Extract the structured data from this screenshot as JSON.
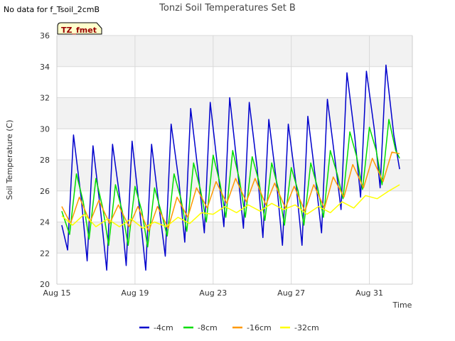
{
  "no_data_note": "No data for f_Tsoil_2cmB",
  "badge": "TZ_fmet",
  "chart_data": {
    "type": "line",
    "title": "Tonzi Soil Temperatures Set B",
    "xlabel": "Time",
    "ylabel": "Soil Temperature (C)",
    "ylim": [
      20,
      36
    ],
    "yticks": [
      20,
      22,
      24,
      26,
      28,
      30,
      32,
      34,
      36
    ],
    "xlim": [
      0,
      18.2
    ],
    "xticks": [
      {
        "pos": 0,
        "label": "Aug 15"
      },
      {
        "pos": 4,
        "label": "Aug 19"
      },
      {
        "pos": 8,
        "label": "Aug 23"
      },
      {
        "pos": 12,
        "label": "Aug 27"
      },
      {
        "pos": 16,
        "label": "Aug 31"
      }
    ],
    "grid": true,
    "legend_position": "bottom",
    "series": [
      {
        "name": "-4cm",
        "color": "#0000cc",
        "x": [
          0.25,
          0.55,
          0.85,
          1.25,
          1.55,
          1.85,
          2.25,
          2.55,
          2.85,
          3.25,
          3.55,
          3.85,
          4.25,
          4.55,
          4.85,
          5.25,
          5.55,
          5.85,
          6.25,
          6.55,
          6.85,
          7.25,
          7.55,
          7.85,
          8.25,
          8.55,
          8.85,
          9.25,
          9.55,
          9.85,
          10.25,
          10.55,
          10.85,
          11.25,
          11.55,
          11.85,
          12.25,
          12.55,
          12.85,
          13.25,
          13.55,
          13.85,
          14.25,
          14.55,
          14.85,
          15.25,
          15.55,
          15.85,
          16.25,
          16.55,
          16.85,
          17.25,
          17.55
        ],
        "y": [
          23.8,
          22.2,
          29.6,
          25.5,
          21.5,
          28.9,
          24.6,
          20.9,
          29.0,
          25.3,
          21.2,
          29.2,
          24.6,
          20.9,
          29.0,
          24.8,
          21.8,
          30.3,
          26.6,
          22.7,
          31.3,
          27.0,
          23.3,
          31.7,
          27.3,
          23.7,
          32.0,
          27.4,
          23.6,
          31.7,
          27.5,
          23.0,
          30.6,
          26.5,
          22.5,
          30.3,
          26.4,
          22.5,
          30.8,
          26.7,
          23.3,
          31.9,
          27.9,
          24.8,
          33.6,
          29.5,
          25.6,
          33.7,
          30.0,
          26.2,
          34.1,
          29.6,
          27.4
        ]
      },
      {
        "name": "-8cm",
        "color": "#00dd00",
        "x": [
          0.25,
          0.65,
          1.0,
          1.35,
          1.65,
          2.0,
          2.35,
          2.65,
          3.0,
          3.35,
          3.65,
          4.0,
          4.35,
          4.65,
          5.0,
          5.35,
          5.65,
          6.0,
          6.35,
          6.65,
          7.0,
          7.35,
          7.65,
          8.0,
          8.35,
          8.65,
          9.0,
          9.35,
          9.65,
          10.0,
          10.35,
          10.65,
          11.0,
          11.35,
          11.65,
          12.0,
          12.35,
          12.65,
          13.0,
          13.35,
          13.65,
          14.0,
          14.35,
          14.65,
          15.0,
          15.35,
          15.65,
          16.0,
          16.35,
          16.65,
          17.0,
          17.35,
          17.55
        ],
        "y": [
          24.7,
          23.2,
          27.1,
          25.3,
          22.9,
          26.8,
          24.9,
          22.5,
          26.4,
          24.7,
          22.5,
          26.3,
          24.7,
          22.4,
          26.2,
          24.6,
          23.1,
          27.1,
          25.5,
          23.4,
          27.8,
          26.1,
          24.0,
          28.3,
          26.5,
          24.3,
          28.6,
          26.7,
          24.3,
          28.2,
          26.6,
          24.1,
          27.8,
          26.1,
          23.8,
          27.5,
          26.0,
          23.8,
          27.8,
          26.2,
          24.3,
          28.6,
          27.1,
          25.5,
          29.8,
          28.2,
          26.1,
          30.1,
          28.6,
          26.4,
          30.6,
          28.6,
          28.1
        ]
      },
      {
        "name": "-16cm",
        "color": "#ff9900",
        "x": [
          0.25,
          0.7,
          1.15,
          1.7,
          2.15,
          2.7,
          3.15,
          3.7,
          4.15,
          4.7,
          5.15,
          5.7,
          6.15,
          6.7,
          7.15,
          7.7,
          8.15,
          8.7,
          9.15,
          9.7,
          10.15,
          10.7,
          11.15,
          11.7,
          12.15,
          12.7,
          13.15,
          13.7,
          14.15,
          14.7,
          15.15,
          15.7,
          16.15,
          16.7,
          17.15,
          17.55
        ],
        "y": [
          25.0,
          23.9,
          25.6,
          24.0,
          25.4,
          23.9,
          25.1,
          23.7,
          25.0,
          23.4,
          25.0,
          23.6,
          25.6,
          24.3,
          26.2,
          24.9,
          26.6,
          25.2,
          26.8,
          25.3,
          26.8,
          25.1,
          26.5,
          24.9,
          26.3,
          24.7,
          26.4,
          24.9,
          26.9,
          25.6,
          27.7,
          26.2,
          28.1,
          26.6,
          28.5,
          28.4
        ]
      },
      {
        "name": "-32cm",
        "color": "#ffff00",
        "x": [
          0.25,
          0.8,
          1.4,
          2.0,
          2.6,
          3.2,
          3.8,
          4.4,
          5.0,
          5.6,
          6.2,
          6.8,
          7.4,
          8.0,
          8.6,
          9.2,
          9.8,
          10.4,
          11.0,
          11.6,
          12.2,
          12.8,
          13.4,
          14.0,
          14.6,
          15.2,
          15.8,
          16.4,
          17.0,
          17.55
        ],
        "y": [
          24.4,
          23.8,
          24.5,
          23.7,
          24.2,
          23.7,
          24.2,
          23.6,
          24.0,
          23.7,
          24.3,
          23.9,
          24.6,
          24.5,
          25.0,
          24.6,
          25.1,
          24.7,
          25.2,
          24.8,
          25.1,
          24.5,
          25.0,
          24.6,
          25.3,
          24.9,
          25.7,
          25.5,
          26.0,
          26.4
        ]
      }
    ]
  }
}
